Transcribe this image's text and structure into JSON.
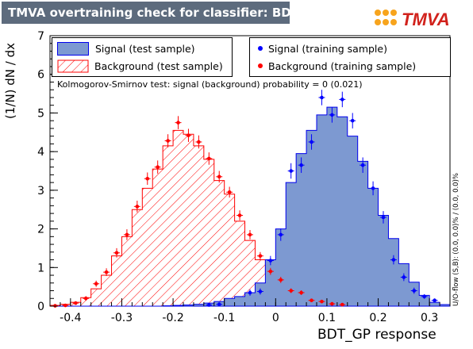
{
  "header": {
    "title": "TMVA overtraining check for classifier: BDT_GP",
    "logo_text": "TMVA"
  },
  "colors": {
    "signal_fill": "#7d99d1",
    "signal_line": "#0000ee",
    "background_hatch": "#ff0000",
    "signal_marker": "#0000ff",
    "background_marker": "#ff0000",
    "title_bar": "#5d6b7d"
  },
  "annotations": {
    "ks": "Kolmogorov-Smirnov test: signal (background) probability =    0 (0.021)",
    "side": "U/O-flow (S,B): (0.0, 0.0)% / (0.0, 0.0)%"
  },
  "legend": {
    "left": [
      {
        "label": "Signal (test sample)",
        "style": "filled-blue"
      },
      {
        "label": "Background (test sample)",
        "style": "hatched-red"
      }
    ],
    "right": [
      {
        "label": "Signal (training sample)",
        "style": "blue-marker"
      },
      {
        "label": "Background (training sample)",
        "style": "red-marker"
      }
    ]
  },
  "chart_data": {
    "type": "histogram",
    "xlabel": "BDT_GP response",
    "ylabel": "(1/N) dN / dx",
    "xlim": [
      -0.44,
      0.34
    ],
    "ylim": [
      0,
      7
    ],
    "xticks": [
      "-0.4",
      "-0.3",
      "-0.2",
      "-0.1",
      "0",
      "0.1",
      "0.2",
      "0.3"
    ],
    "xtick_values": [
      -0.4,
      -0.3,
      -0.2,
      -0.1,
      0,
      0.1,
      0.2,
      0.3
    ],
    "yticks": [
      "0",
      "1",
      "2",
      "3",
      "4",
      "5",
      "6",
      "7"
    ],
    "ytick_values": [
      0,
      1,
      2,
      3,
      4,
      5,
      6,
      7
    ],
    "bin_edges": [
      -0.44,
      -0.42,
      -0.4,
      -0.38,
      -0.36,
      -0.34,
      -0.32,
      -0.3,
      -0.28,
      -0.26,
      -0.24,
      -0.22,
      -0.2,
      -0.18,
      -0.16,
      -0.14,
      -0.12,
      -0.1,
      -0.08,
      -0.06,
      -0.04,
      -0.02,
      0.0,
      0.02,
      0.04,
      0.06,
      0.08,
      0.1,
      0.12,
      0.14,
      0.16,
      0.18,
      0.2,
      0.22,
      0.24,
      0.26,
      0.28,
      0.3,
      0.32,
      0.34
    ],
    "series": [
      {
        "name": "Signal (test sample)",
        "values": [
          0,
          0,
          0,
          0,
          0,
          0,
          0,
          0,
          0,
          0,
          0,
          0.01,
          0.02,
          0.03,
          0.05,
          0.08,
          0.12,
          0.2,
          0.25,
          0.35,
          0.6,
          1.2,
          2.0,
          3.2,
          3.95,
          4.55,
          4.95,
          5.15,
          4.9,
          4.4,
          3.75,
          3.05,
          2.35,
          1.75,
          1.1,
          0.62,
          0.28,
          0.1,
          0.04
        ]
      },
      {
        "name": "Background (test sample)",
        "values": [
          0.02,
          0.05,
          0.1,
          0.22,
          0.45,
          0.8,
          1.3,
          1.8,
          2.5,
          3.05,
          3.55,
          4.15,
          4.55,
          4.45,
          4.15,
          3.8,
          3.25,
          2.9,
          2.2,
          1.7,
          1.2,
          0.85,
          0.6,
          0.42,
          0.28,
          0.18,
          0.1,
          0.06,
          0.04,
          0.02,
          0.01,
          0,
          0,
          0,
          0,
          0,
          0,
          0,
          0
        ]
      },
      {
        "name": "Signal (training sample)",
        "points": [
          [
            -0.13,
            0.03
          ],
          [
            -0.11,
            0.05
          ],
          [
            -0.05,
            0.35
          ],
          [
            -0.03,
            0.38
          ],
          [
            -0.01,
            1.18
          ],
          [
            0.01,
            1.85
          ],
          [
            0.03,
            3.5
          ],
          [
            0.05,
            3.65
          ],
          [
            0.07,
            4.25
          ],
          [
            0.09,
            5.4
          ],
          [
            0.11,
            4.95
          ],
          [
            0.13,
            5.35
          ],
          [
            0.15,
            4.8
          ],
          [
            0.17,
            3.65
          ],
          [
            0.19,
            3.05
          ],
          [
            0.21,
            2.3
          ],
          [
            0.23,
            1.2
          ],
          [
            0.25,
            0.75
          ],
          [
            0.27,
            0.4
          ],
          [
            0.29,
            0.25
          ],
          [
            0.31,
            0.15
          ]
        ],
        "errors": [
          0.03,
          0.04,
          0.08,
          0.08,
          0.12,
          0.16,
          0.2,
          0.2,
          0.2,
          0.2,
          0.2,
          0.2,
          0.2,
          0.2,
          0.18,
          0.16,
          0.12,
          0.1,
          0.08,
          0.06,
          0.05
        ]
      },
      {
        "name": "Background (training sample)",
        "points": [
          [
            -0.43,
            0.01
          ],
          [
            -0.41,
            0.02
          ],
          [
            -0.39,
            0.08
          ],
          [
            -0.37,
            0.2
          ],
          [
            -0.35,
            0.58
          ],
          [
            -0.33,
            0.88
          ],
          [
            -0.31,
            1.38
          ],
          [
            -0.29,
            1.85
          ],
          [
            -0.27,
            2.58
          ],
          [
            -0.25,
            3.3
          ],
          [
            -0.23,
            3.6
          ],
          [
            -0.21,
            4.28
          ],
          [
            -0.19,
            4.75
          ],
          [
            -0.17,
            4.42
          ],
          [
            -0.15,
            4.25
          ],
          [
            -0.13,
            3.82
          ],
          [
            -0.11,
            3.35
          ],
          [
            -0.09,
            2.95
          ],
          [
            -0.07,
            2.35
          ],
          [
            -0.05,
            1.85
          ],
          [
            -0.03,
            1.3
          ],
          [
            -0.01,
            0.9
          ],
          [
            0.01,
            0.68
          ],
          [
            0.03,
            0.4
          ],
          [
            0.05,
            0.35
          ],
          [
            0.07,
            0.15
          ],
          [
            0.09,
            0.12
          ],
          [
            0.11,
            0.06
          ],
          [
            0.13,
            0.04
          ]
        ],
        "errors": [
          0.01,
          0.02,
          0.04,
          0.06,
          0.08,
          0.1,
          0.12,
          0.14,
          0.15,
          0.16,
          0.17,
          0.17,
          0.17,
          0.17,
          0.17,
          0.16,
          0.15,
          0.14,
          0.13,
          0.12,
          0.1,
          0.09,
          0.08,
          0.06,
          0.06,
          0.04,
          0.04,
          0.03,
          0.02
        ]
      }
    ]
  }
}
